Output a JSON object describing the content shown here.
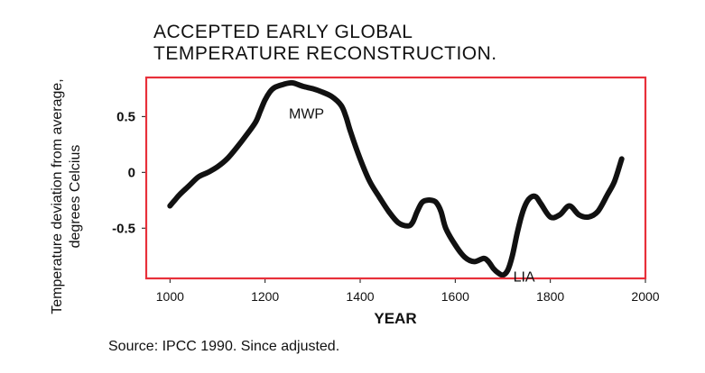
{
  "chart_data": {
    "type": "line",
    "title_lines": [
      "ACCEPTED EARLY GLOBAL",
      "TEMPERATURE RECONSTRUCTION."
    ],
    "xlabel": "YEAR",
    "ylabel_lines": [
      "Temperature deviation from average,",
      "degrees Celcius"
    ],
    "xlim": [
      950,
      2000
    ],
    "ylim": [
      -0.95,
      0.85
    ],
    "x_ticks": [
      1000,
      1200,
      1400,
      1600,
      1800,
      2000
    ],
    "x_tick_labels": [
      "1000",
      "1200",
      "1400",
      "1600",
      "1800",
      "2000"
    ],
    "y_ticks": [
      0.5,
      0,
      -0.5
    ],
    "y_tick_labels": [
      "0.5",
      "0",
      "-0.5"
    ],
    "grid": false,
    "frame_color": "#e8303a",
    "line_color": "#111111",
    "series": [
      {
        "x": [
          1000,
          1010,
          1020,
          1040,
          1060,
          1080,
          1100,
          1120,
          1140,
          1160,
          1180,
          1190,
          1200,
          1210,
          1220,
          1240,
          1250,
          1260,
          1280,
          1300,
          1320,
          1340,
          1360,
          1370,
          1380,
          1400,
          1420,
          1440,
          1460,
          1480,
          1500,
          1510,
          1520,
          1530,
          1540,
          1550,
          1560,
          1570,
          1580,
          1600,
          1620,
          1640,
          1660,
          1670,
          1680,
          1690,
          1700,
          1710,
          1720,
          1730,
          1740,
          1750,
          1760,
          1770,
          1780,
          1800,
          1820,
          1840,
          1860,
          1880,
          1900,
          1920,
          1935,
          1950
        ],
        "y": [
          -0.3,
          -0.25,
          -0.2,
          -0.12,
          -0.04,
          0,
          0.05,
          0.12,
          0.22,
          0.33,
          0.45,
          0.55,
          0.65,
          0.72,
          0.76,
          0.79,
          0.8,
          0.8,
          0.77,
          0.75,
          0.72,
          0.68,
          0.6,
          0.5,
          0.36,
          0.12,
          -0.08,
          -0.22,
          -0.35,
          -0.45,
          -0.48,
          -0.45,
          -0.35,
          -0.27,
          -0.25,
          -0.25,
          -0.27,
          -0.35,
          -0.5,
          -0.65,
          -0.76,
          -0.8,
          -0.77,
          -0.8,
          -0.86,
          -0.9,
          -0.92,
          -0.88,
          -0.75,
          -0.55,
          -0.38,
          -0.27,
          -0.22,
          -0.22,
          -0.28,
          -0.4,
          -0.38,
          -0.3,
          -0.38,
          -0.4,
          -0.35,
          -0.2,
          -0.08,
          0.12
        ]
      }
    ],
    "annotations": [
      {
        "text": "MWP",
        "x": 1250,
        "y": 0.53
      },
      {
        "text": "LIA",
        "x": 1722,
        "y": -0.93
      }
    ]
  },
  "source_text": "Source: IPCC 1990. Since adjusted."
}
